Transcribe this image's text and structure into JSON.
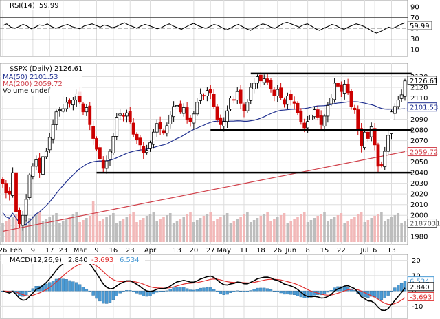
{
  "chart_data": [
    {
      "type": "line",
      "title": "RSI(14)",
      "value_label": "59.99",
      "y_ticks": [
        "90",
        "70",
        "50",
        "30",
        "10"
      ],
      "ylim": [
        0,
        100
      ],
      "reference_lines": [
        70,
        50,
        30
      ],
      "series": [
        {
          "color": "#000000",
          "values": [
            55,
            58,
            52,
            50,
            53,
            57,
            54,
            49,
            52,
            56,
            55,
            58,
            53,
            50,
            52,
            55,
            57,
            53,
            51,
            49,
            54,
            56,
            58,
            55,
            52,
            56,
            54,
            51,
            53,
            57,
            60,
            56,
            53,
            50,
            54,
            57,
            55,
            52,
            49,
            51,
            55,
            58,
            54,
            51,
            48,
            52,
            56,
            59,
            55,
            52,
            50,
            53,
            57,
            55,
            51,
            47,
            50,
            54,
            57,
            53,
            49,
            46,
            51,
            55,
            58,
            56,
            52,
            50,
            54,
            59,
            61,
            58,
            55,
            52,
            56,
            58,
            54,
            49,
            46,
            50,
            53,
            57,
            55,
            51,
            48,
            52,
            55,
            58,
            56,
            53,
            49,
            44,
            41,
            44,
            48,
            52,
            50,
            53,
            57,
            60
          ]
        }
      ]
    },
    {
      "type": "candlestick",
      "title": "$SPX (Daily) 2126.61",
      "ma50_label": "MA(50) 2101.53",
      "ma200_label": "MA(200) 2059.72",
      "volume_label": "Volume undef",
      "price_badge": "2126.61",
      "ma50_badge": "2101.53",
      "ma200_badge": "2059.72",
      "volume_badge": "2187031",
      "ylim": [
        1975,
        2140
      ],
      "y_ticks": [
        "2130",
        "2120",
        "2110",
        "2100",
        "2090",
        "2080",
        "2070",
        "2060",
        "2050",
        "2040",
        "2030",
        "2020",
        "2010",
        "2000",
        "1990",
        "1980"
      ],
      "x_labels": [
        {
          "text": "26",
          "i": 0
        },
        {
          "text": "Feb",
          "i": 4
        },
        {
          "text": "9",
          "i": 9
        },
        {
          "text": "17",
          "i": 14
        },
        {
          "text": "23",
          "i": 18
        },
        {
          "text": "Mar",
          "i": 23
        },
        {
          "text": "9",
          "i": 28
        },
        {
          "text": "16",
          "i": 33
        },
        {
          "text": "23",
          "i": 38
        },
        {
          "text": "Apr",
          "i": 44
        },
        {
          "text": "13",
          "i": 52
        },
        {
          "text": "20",
          "i": 57
        },
        {
          "text": "27",
          "i": 62
        },
        {
          "text": "May",
          "i": 66
        },
        {
          "text": "11",
          "i": 72
        },
        {
          "text": "18",
          "i": 77
        },
        {
          "text": "26",
          "i": 82
        },
        {
          "text": "Jun",
          "i": 86
        },
        {
          "text": "8",
          "i": 91
        },
        {
          "text": "15",
          "i": 96
        },
        {
          "text": "22",
          "i": 101
        },
        {
          "text": "Jul",
          "i": 108
        },
        {
          "text": "6",
          "i": 111
        },
        {
          "text": "13",
          "i": 116
        }
      ],
      "horizontal_lines": [
        {
          "y": 2133,
          "from": 74,
          "to": 122
        },
        {
          "y": 2080,
          "from": 62,
          "to": 122
        },
        {
          "y": 2040,
          "from": 28,
          "to": 122
        }
      ],
      "closes": [
        2030,
        2021,
        2020,
        2040,
        2003,
        1992,
        2000,
        2015,
        2038,
        2046,
        2052,
        2040,
        2055,
        2060,
        2073,
        2085,
        2097,
        2099,
        2100,
        2106,
        2105,
        2108,
        2114,
        2106,
        2097,
        2101,
        2085,
        2072,
        2062,
        2053,
        2044,
        2051,
        2060,
        2074,
        2092,
        2095,
        2093,
        2096,
        2088,
        2076,
        2071,
        2066,
        2059,
        2061,
        2068,
        2078,
        2086,
        2081,
        2077,
        2084,
        2094,
        2102,
        2103,
        2097,
        2101,
        2090,
        2088,
        2095,
        2106,
        2114,
        2112,
        2117,
        2115,
        2102,
        2090,
        2085,
        2088,
        2098,
        2110,
        2108,
        2116,
        2105,
        2098,
        2106,
        2120,
        2124,
        2130,
        2126,
        2128,
        2125,
        2119,
        2112,
        2118,
        2110,
        2104,
        2112,
        2108,
        2105,
        2096,
        2088,
        2082,
        2088,
        2094,
        2099,
        2092,
        2085,
        2093,
        2103,
        2110,
        2124,
        2121,
        2116,
        2123,
        2115,
        2102,
        2099,
        2080,
        2065,
        2078,
        2072,
        2083,
        2066,
        2046,
        2047,
        2060,
        2075,
        2097,
        2102,
        2108,
        2113,
        2126
      ]
    },
    {
      "type": "line",
      "title": "MACD(12,26,9)",
      "value_macd": "2.840",
      "value_signal": "-3.693",
      "value_hist": "6.534",
      "y_ticks": [
        "20",
        "10",
        "0",
        "-10"
      ],
      "ylim": [
        -17,
        23
      ],
      "badges": [
        "6.534",
        "2.840",
        "-3.693"
      ]
    }
  ],
  "colors": {
    "up": "#ffffff",
    "down": "#cc0000",
    "candle_edge": "#000000",
    "ma50": "#1f2f8f",
    "ma200": "#d0404a",
    "volume_up": "#bdbdbd",
    "volume_down": "#f2b8b8",
    "macd_line": "#000000",
    "signal_line": "#e03030",
    "histogram": "#4a9ad4",
    "grid": "#dddddd"
  }
}
